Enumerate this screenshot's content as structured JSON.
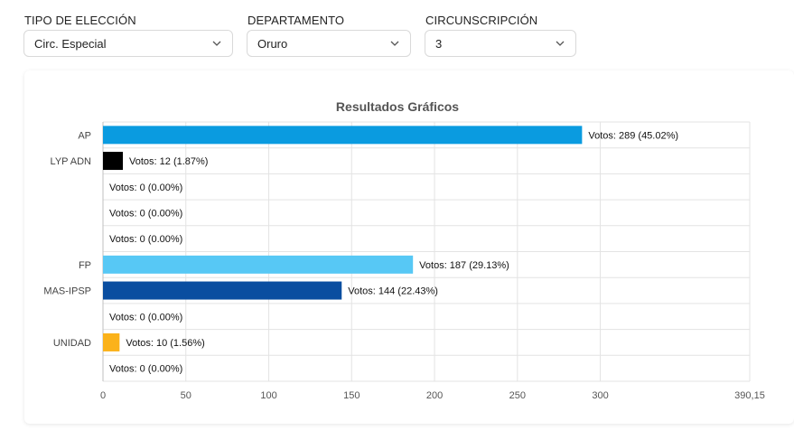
{
  "filters": [
    {
      "label": "TIPO DE ELECCIÓN",
      "value": "Circ. Especial"
    },
    {
      "label": "DEPARTAMENTO",
      "value": "Oruro"
    },
    {
      "label": "CIRCUNSCRIPCIÓN",
      "value": "3"
    }
  ],
  "icons": {
    "dropdown": "chevron-down-icon"
  },
  "chart_data": {
    "type": "bar",
    "orientation": "horizontal",
    "title": "Resultados Gráficos",
    "categories": [
      "AP",
      "LYP ADN",
      "",
      "",
      "",
      "FP",
      "MAS-IPSP",
      "",
      "UNIDAD",
      ""
    ],
    "values": [
      289,
      12,
      0,
      0,
      0,
      187,
      144,
      0,
      10,
      0
    ],
    "data_labels": [
      "Votos: 289 (45.02%)",
      "Votos: 12 (1.87%)",
      "Votos: 0 (0.00%)",
      "Votos: 0 (0.00%)",
      "Votos: 0 (0.00%)",
      "Votos: 187 (29.13%)",
      "Votos: 144 (22.43%)",
      "Votos: 0 (0.00%)",
      "Votos: 10 (1.56%)",
      "Votos: 0 (0.00%)"
    ],
    "colors": [
      "#0a9be0",
      "#000000",
      "#cccccc",
      "#cccccc",
      "#cccccc",
      "#57c8f5",
      "#0a4ea0",
      "#cccccc",
      "#fbb21a",
      "#cccccc"
    ],
    "xlim": [
      0,
      390.15
    ],
    "xticks": [
      0,
      50,
      100,
      150,
      200,
      250,
      300,
      390.15
    ],
    "xtick_labels": [
      "0",
      "50",
      "100",
      "150",
      "200",
      "250",
      "300",
      "390,15"
    ],
    "grid": true,
    "legend": "none"
  }
}
